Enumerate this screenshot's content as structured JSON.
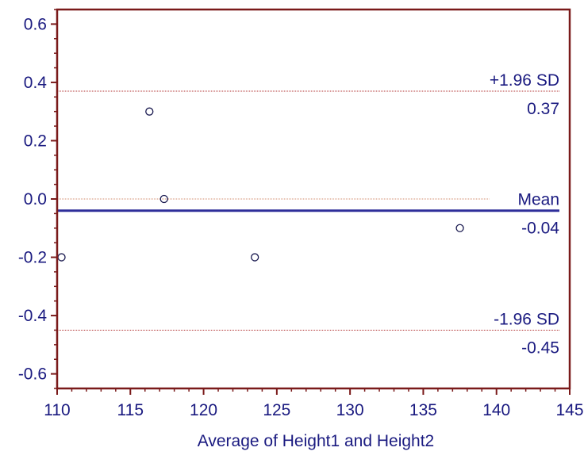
{
  "chart_data": {
    "type": "scatter",
    "title": "",
    "xlabel": "Average of Height1 and Height2",
    "ylabel": "",
    "xlim": [
      110,
      145
    ],
    "ylim": [
      -0.65,
      0.65
    ],
    "x_ticks": [
      110,
      115,
      120,
      125,
      130,
      135,
      140,
      145
    ],
    "x_tick_labels": [
      "110",
      "115",
      "120",
      "125",
      "130",
      "135",
      "140",
      "145"
    ],
    "y_ticks": [
      0.6,
      0.4,
      0.2,
      0.0,
      -0.2,
      -0.4,
      -0.6
    ],
    "y_tick_labels": [
      "0.6",
      "0.4",
      "0.2",
      "0.0",
      "-0.2",
      "-0.4",
      "-0.6"
    ],
    "points": [
      {
        "x": 110.3,
        "y": -0.2
      },
      {
        "x": 116.3,
        "y": 0.3
      },
      {
        "x": 117.3,
        "y": 0.0
      },
      {
        "x": 123.5,
        "y": -0.2
      },
      {
        "x": 137.5,
        "y": -0.1
      }
    ],
    "reference_lines": {
      "upper": {
        "value": 0.37,
        "label": "+1.96 SD",
        "value_label": "0.37"
      },
      "mean": {
        "value": -0.04,
        "label": "Mean",
        "value_label": "-0.04"
      },
      "lower": {
        "value": -0.45,
        "label": "-1.96 SD",
        "value_label": "-0.45"
      },
      "zero": {
        "value": 0.0
      }
    },
    "colors": {
      "axis": "#7a1a1a",
      "text": "#1a1a80",
      "mean_line": "#2e2e9a",
      "sd_line": "#b03030",
      "zero_line": "#d08a6a",
      "marker": "#1a1a50"
    },
    "grid": false,
    "legend": "none"
  }
}
